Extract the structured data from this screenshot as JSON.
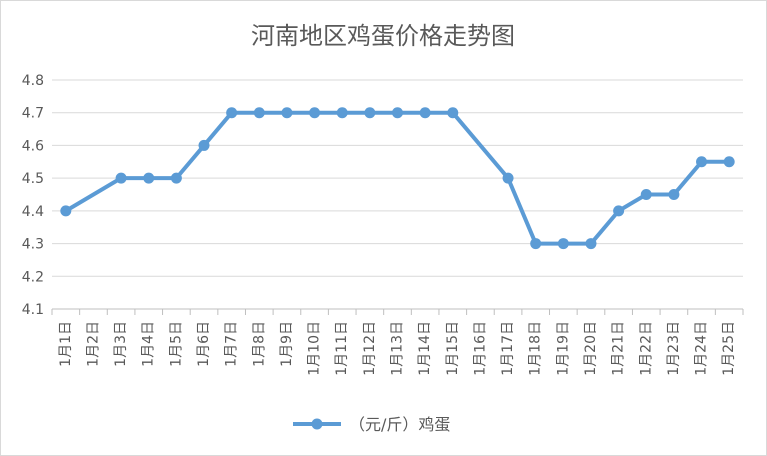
{
  "chart_data": {
    "type": "line",
    "title": "河南地区鸡蛋价格走势图",
    "xlabel": "",
    "ylabel": "",
    "categories": [
      "1月1日",
      "1月2日",
      "1月3日",
      "1月4日",
      "1月5日",
      "1月6日",
      "1月7日",
      "1月8日",
      "1月9日",
      "1月10日",
      "1月11日",
      "1月12日",
      "1月13日",
      "1月14日",
      "1月15日",
      "1月16日",
      "1月17日",
      "1月18日",
      "1月19日",
      "1月20日",
      "1月21日",
      "1月22日",
      "1月23日",
      "1月24日",
      "1月25日"
    ],
    "series": [
      {
        "name": "（元/斤）鸡蛋",
        "color": "#5b9bd5",
        "values": [
          4.4,
          null,
          4.5,
          4.5,
          4.5,
          4.6,
          4.7,
          4.7,
          4.7,
          4.7,
          4.7,
          4.7,
          4.7,
          4.7,
          4.7,
          null,
          4.5,
          4.3,
          4.3,
          4.3,
          4.4,
          4.45,
          4.45,
          4.55,
          4.55
        ]
      }
    ],
    "ylim": [
      4.1,
      4.8
    ],
    "yticks": [
      "4.1",
      "4.2",
      "4.3",
      "4.4",
      "4.5",
      "4.6",
      "4.7",
      "4.8"
    ],
    "grid": true,
    "legend_position": "bottom"
  }
}
